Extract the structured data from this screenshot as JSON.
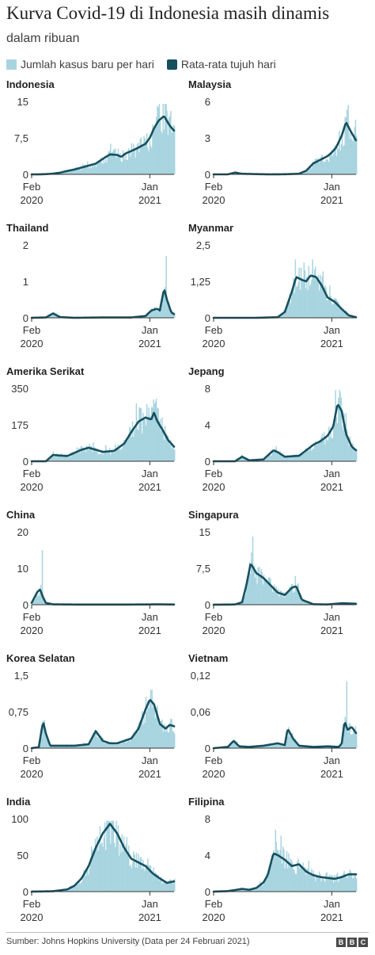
{
  "header": {
    "title": "Kurva Covid-19 di Indonesia masih dinamis",
    "subtitle": "dalam ribuan",
    "legend_bar": "Jumlah kasus baru per hari",
    "legend_line": "Rata-rata tujuh hari"
  },
  "colors": {
    "bar": "#a8d4e0",
    "line": "#16505f",
    "axis": "#333333",
    "text": "#222222"
  },
  "footer": {
    "source": "Sumber: Johns Hopkins University (Data per 24 Februari 2021)",
    "logo": [
      "B",
      "B",
      "C"
    ]
  },
  "chart_data": [
    {
      "type": "area",
      "title": "Indonesia",
      "unit": "ribu",
      "ylim": [
        0,
        15
      ],
      "yticks": [
        "15",
        "7,5",
        "0"
      ],
      "ytick_values": [
        15,
        7.5,
        0
      ],
      "xticks": [
        {
          "month": "Feb",
          "year": "2020",
          "t": 0.0
        },
        {
          "month": "Jan",
          "year": "2021",
          "t": 0.83
        }
      ],
      "x": [
        0,
        0.05,
        0.1,
        0.15,
        0.2,
        0.25,
        0.3,
        0.35,
        0.4,
        0.45,
        0.5,
        0.55,
        0.6,
        0.63,
        0.66,
        0.7,
        0.75,
        0.8,
        0.83,
        0.86,
        0.89,
        0.93,
        0.97,
        1.0
      ],
      "avg": [
        0,
        0,
        0.05,
        0.15,
        0.35,
        0.7,
        1.0,
        1.4,
        1.8,
        2.2,
        3.2,
        4.1,
        4.0,
        3.6,
        4.3,
        4.8,
        5.5,
        6.3,
        7.5,
        9.5,
        11.0,
        12.0,
        10.0,
        9.0
      ],
      "peak_daily": 14.5
    },
    {
      "type": "area",
      "title": "Malaysia",
      "unit": "ribu",
      "ylim": [
        0,
        6
      ],
      "yticks": [
        "6",
        "3",
        "0"
      ],
      "ytick_values": [
        6,
        3,
        0
      ],
      "xticks": [
        {
          "month": "Feb",
          "year": "2020",
          "t": 0.0
        },
        {
          "month": "Jan",
          "year": "2021",
          "t": 0.83
        }
      ],
      "x": [
        0,
        0.1,
        0.15,
        0.2,
        0.3,
        0.4,
        0.5,
        0.6,
        0.65,
        0.7,
        0.75,
        0.8,
        0.83,
        0.86,
        0.9,
        0.93,
        0.96,
        1.0
      ],
      "avg": [
        0,
        0,
        0.15,
        0.05,
        0.02,
        0.0,
        0.01,
        0.05,
        0.3,
        0.9,
        1.2,
        1.5,
        1.8,
        2.2,
        3.2,
        4.3,
        3.6,
        2.8
      ],
      "peak_daily": 5.7
    },
    {
      "type": "area",
      "title": "Thailand",
      "unit": "ribu",
      "ylim": [
        0,
        2
      ],
      "yticks": [
        "2",
        "1",
        "0"
      ],
      "ytick_values": [
        2,
        1,
        0
      ],
      "xticks": [
        {
          "month": "Feb",
          "year": "2020",
          "t": 0.0
        },
        {
          "month": "Jan",
          "year": "2021",
          "t": 0.83
        }
      ],
      "x": [
        0,
        0.1,
        0.15,
        0.2,
        0.3,
        0.5,
        0.7,
        0.8,
        0.84,
        0.88,
        0.9,
        0.93,
        0.95,
        0.98,
        1.0
      ],
      "avg": [
        0,
        0.01,
        0.12,
        0.02,
        0.0,
        0.01,
        0.01,
        0.05,
        0.2,
        0.25,
        0.2,
        0.8,
        0.5,
        0.15,
        0.1
      ],
      "peak_daily": 1.7
    },
    {
      "type": "area",
      "title": "Myanmar",
      "unit": "ribu",
      "ylim": [
        0,
        2.5
      ],
      "yticks": [
        "2,5",
        "1,25",
        "0"
      ],
      "ytick_values": [
        2.5,
        1.25,
        0
      ],
      "xticks": [
        {
          "month": "Feb",
          "year": "2020",
          "t": 0.0
        },
        {
          "month": "Jan",
          "year": "2021",
          "t": 0.83
        }
      ],
      "x": [
        0,
        0.3,
        0.45,
        0.5,
        0.55,
        0.58,
        0.62,
        0.65,
        0.68,
        0.72,
        0.76,
        0.8,
        0.85,
        0.9,
        0.95,
        1.0
      ],
      "avg": [
        0,
        0,
        0.02,
        0.2,
        0.9,
        1.4,
        1.3,
        1.25,
        1.45,
        1.4,
        1.1,
        0.7,
        0.55,
        0.3,
        0.08,
        0.02
      ],
      "peak_daily": 2.0
    },
    {
      "type": "area",
      "title": "Amerika Serikat",
      "unit": "ribu",
      "ylim": [
        0,
        350
      ],
      "yticks": [
        "350",
        "175",
        "0"
      ],
      "ytick_values": [
        350,
        175,
        0
      ],
      "xticks": [
        {
          "month": "Feb",
          "year": "2020",
          "t": 0.0
        },
        {
          "month": "Jan",
          "year": "2021",
          "t": 0.83
        }
      ],
      "x": [
        0,
        0.1,
        0.15,
        0.25,
        0.35,
        0.4,
        0.45,
        0.5,
        0.58,
        0.65,
        0.7,
        0.75,
        0.8,
        0.84,
        0.86,
        0.88,
        0.92,
        0.96,
        1.0
      ],
      "avg": [
        0,
        0,
        30,
        25,
        55,
        65,
        55,
        45,
        50,
        85,
        140,
        190,
        210,
        200,
        235,
        195,
        150,
        100,
        70
      ],
      "peak_daily": 300
    },
    {
      "type": "area",
      "title": "Jepang",
      "unit": "ribu",
      "ylim": [
        0,
        8
      ],
      "yticks": [
        "8",
        "4",
        "0"
      ],
      "ytick_values": [
        8,
        4,
        0
      ],
      "xticks": [
        {
          "month": "Feb",
          "year": "2020",
          "t": 0.0
        },
        {
          "month": "Jan",
          "year": "2021",
          "t": 0.83
        }
      ],
      "x": [
        0,
        0.15,
        0.2,
        0.25,
        0.35,
        0.42,
        0.45,
        0.5,
        0.6,
        0.7,
        0.75,
        0.8,
        0.84,
        0.87,
        0.9,
        0.93,
        0.97,
        1.0
      ],
      "avg": [
        0,
        0,
        0.5,
        0.1,
        0.2,
        1.2,
        1.0,
        0.5,
        0.6,
        1.8,
        2.2,
        2.8,
        3.8,
        6.3,
        5.5,
        3.0,
        1.6,
        1.2
      ],
      "peak_daily": 7.8
    },
    {
      "type": "area",
      "title": "China",
      "unit": "ribu",
      "ylim": [
        0,
        20
      ],
      "yticks": [
        "20",
        "10",
        "0"
      ],
      "ytick_values": [
        20,
        10,
        0
      ],
      "xticks": [
        {
          "month": "Feb",
          "year": "2020",
          "t": 0.0
        },
        {
          "month": "Jan",
          "year": "2021",
          "t": 0.83
        }
      ],
      "x": [
        0,
        0.02,
        0.04,
        0.06,
        0.08,
        0.1,
        0.15,
        0.3,
        0.5,
        0.7,
        0.9,
        1.0
      ],
      "avg": [
        0.5,
        2.0,
        3.5,
        4.2,
        2.0,
        0.5,
        0.1,
        0.05,
        0.05,
        0.05,
        0.1,
        0.05
      ],
      "peak_daily": 15.0
    },
    {
      "type": "area",
      "title": "Singapura",
      "unit": "ribu",
      "ylim": [
        0,
        15
      ],
      "yticks": [
        "15",
        "7,5",
        "0"
      ],
      "ytick_values": [
        15,
        7.5,
        0
      ],
      "xticks": [
        {
          "month": "Feb",
          "year": "2020",
          "t": 0.0
        },
        {
          "month": "Jan",
          "year": "2021",
          "t": 0.83
        }
      ],
      "x": [
        0,
        0.15,
        0.2,
        0.23,
        0.26,
        0.3,
        0.35,
        0.4,
        0.45,
        0.5,
        0.55,
        0.58,
        0.62,
        0.7,
        0.8,
        0.9,
        1.0
      ],
      "avg": [
        0,
        0.05,
        0.5,
        4.0,
        8.5,
        6.5,
        5.5,
        4.0,
        2.5,
        2.0,
        3.5,
        3.8,
        1.0,
        0.1,
        0.05,
        0.3,
        0.2
      ],
      "peak_daily": 14.0
    },
    {
      "type": "area",
      "title": "Korea Selatan",
      "unit": "ribu",
      "ylim": [
        0,
        1.5
      ],
      "yticks": [
        "1,5",
        "0,75",
        "0"
      ],
      "ytick_values": [
        1.5,
        0.75,
        0
      ],
      "xticks": [
        {
          "month": "Feb",
          "year": "2020",
          "t": 0.0
        },
        {
          "month": "Jan",
          "year": "2021",
          "t": 0.83
        }
      ],
      "x": [
        0,
        0.05,
        0.08,
        0.1,
        0.13,
        0.2,
        0.3,
        0.4,
        0.45,
        0.5,
        0.55,
        0.6,
        0.7,
        0.75,
        0.8,
        0.83,
        0.86,
        0.9,
        0.94,
        0.97,
        1.0
      ],
      "avg": [
        0,
        0.02,
        0.55,
        0.3,
        0.05,
        0.05,
        0.05,
        0.08,
        0.35,
        0.15,
        0.1,
        0.1,
        0.2,
        0.4,
        0.8,
        1.0,
        0.9,
        0.5,
        0.4,
        0.48,
        0.45
      ],
      "peak_daily": 1.2
    },
    {
      "type": "area",
      "title": "Vietnam",
      "unit": "ribu",
      "ylim": [
        0,
        0.12
      ],
      "yticks": [
        "0,12",
        "0,06",
        "0"
      ],
      "ytick_values": [
        0.12,
        0.06,
        0
      ],
      "xticks": [
        {
          "month": "Feb",
          "year": "2020",
          "t": 0.0
        },
        {
          "month": "Jan",
          "year": "2021",
          "t": 0.83
        }
      ],
      "x": [
        0,
        0.1,
        0.14,
        0.18,
        0.25,
        0.35,
        0.45,
        0.5,
        0.52,
        0.56,
        0.6,
        0.7,
        0.8,
        0.88,
        0.9,
        0.92,
        0.94,
        0.97,
        1.0
      ],
      "avg": [
        0,
        0.002,
        0.012,
        0.003,
        0.002,
        0.004,
        0.008,
        0.005,
        0.032,
        0.015,
        0.004,
        0.002,
        0.003,
        0.002,
        0.008,
        0.045,
        0.03,
        0.035,
        0.025
      ],
      "peak_daily": 0.11
    },
    {
      "type": "area",
      "title": "India",
      "unit": "ribu",
      "ylim": [
        0,
        100
      ],
      "yticks": [
        "100",
        "50",
        "0"
      ],
      "ytick_values": [
        100,
        50,
        0
      ],
      "xticks": [
        {
          "month": "Feb",
          "year": "2020",
          "t": 0.0
        },
        {
          "month": "Jan",
          "year": "2021",
          "t": 0.83
        }
      ],
      "x": [
        0,
        0.15,
        0.25,
        0.3,
        0.35,
        0.4,
        0.45,
        0.5,
        0.55,
        0.6,
        0.65,
        0.7,
        0.75,
        0.8,
        0.85,
        0.9,
        0.95,
        1.0
      ],
      "avg": [
        0,
        0.5,
        3.0,
        8.0,
        18.0,
        35.0,
        60.0,
        80.0,
        93.0,
        80.0,
        60.0,
        45.0,
        40.0,
        35.0,
        25.0,
        18.0,
        12.0,
        14.0
      ],
      "peak_daily": 97.0
    },
    {
      "type": "area",
      "title": "Filipina",
      "unit": "ribu",
      "ylim": [
        0,
        8
      ],
      "yticks": [
        "8",
        "4",
        "0"
      ],
      "ytick_values": [
        8,
        4,
        0
      ],
      "xticks": [
        {
          "month": "Feb",
          "year": "2020",
          "t": 0.0
        },
        {
          "month": "Jan",
          "year": "2021",
          "t": 0.83
        }
      ],
      "x": [
        0,
        0.1,
        0.2,
        0.25,
        0.3,
        0.35,
        0.38,
        0.42,
        0.45,
        0.5,
        0.55,
        0.6,
        0.65,
        0.7,
        0.75,
        0.8,
        0.85,
        0.9,
        0.95,
        1.0
      ],
      "avg": [
        0,
        0.05,
        0.3,
        0.2,
        0.4,
        1.0,
        1.8,
        4.2,
        4.0,
        3.5,
        2.8,
        3.0,
        2.2,
        1.8,
        1.6,
        1.5,
        1.4,
        1.6,
        1.9,
        1.9
      ],
      "peak_daily": 6.8
    }
  ]
}
